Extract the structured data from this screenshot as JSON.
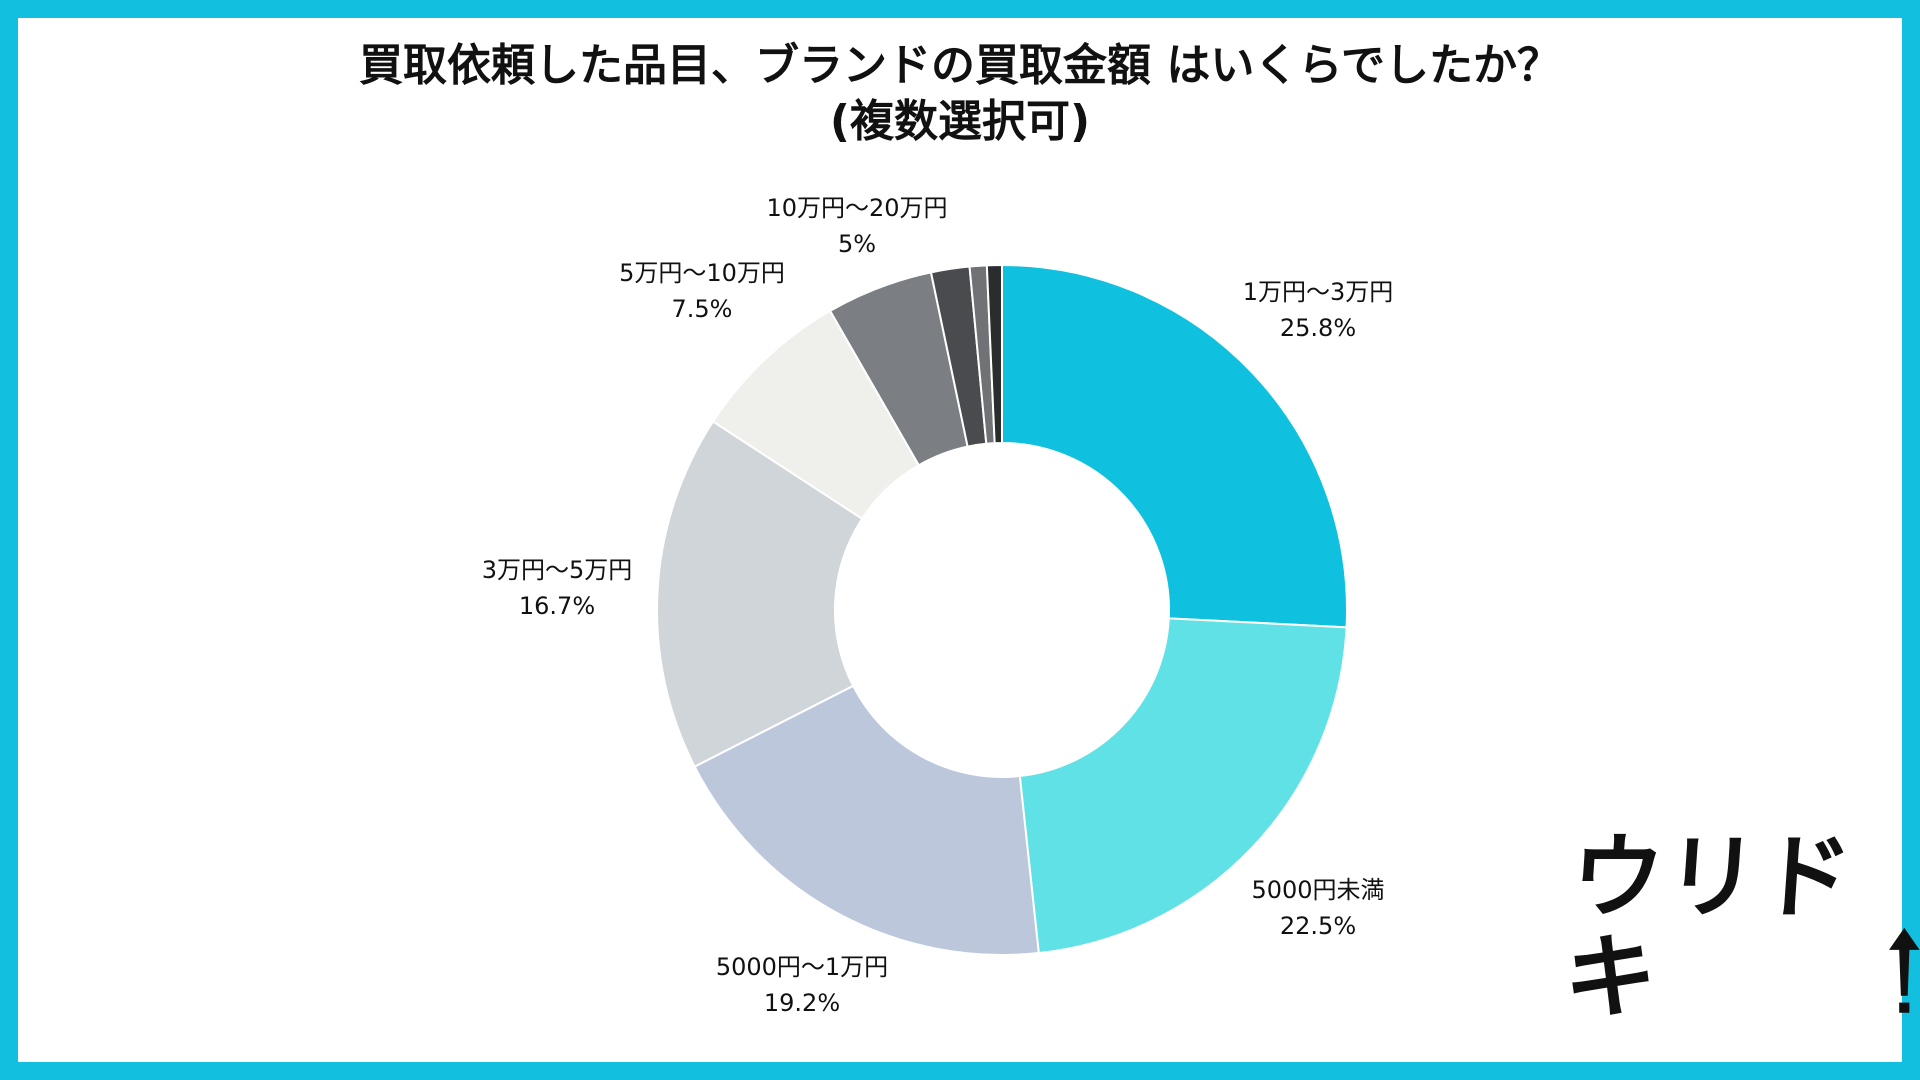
{
  "colors": {
    "frame": "#12bfdf",
    "slices": [
      "#10c1df",
      "#5fe1e6",
      "#bcc7dc",
      "#d0d5d9",
      "#efefec",
      "#7b7e83",
      "#4a4b4e",
      "#707276",
      "#2b2c2e"
    ]
  },
  "chart_data": {
    "type": "pie",
    "donut": true,
    "title": "買取依頼した品目、ブランドの買取金額 はいくらでしたか？",
    "subtitle": "(複数選択可)",
    "slices": [
      {
        "label": "1万円〜3万円",
        "value": 25.8,
        "value_label": "25.8%"
      },
      {
        "label": "5000円未満",
        "value": 22.5,
        "value_label": "22.5%"
      },
      {
        "label": "5000円〜1万円",
        "value": 19.2,
        "value_label": "19.2%"
      },
      {
        "label": "3万円〜5万円",
        "value": 16.7,
        "value_label": "16.7%"
      },
      {
        "label": "5万円〜10万円",
        "value": 7.5,
        "value_label": "7.5%"
      },
      {
        "label": "10万円〜20万円",
        "value": 5,
        "value_label": "5%"
      },
      {
        "label": "",
        "value": 1.8,
        "value_label": ""
      },
      {
        "label": "",
        "value": 0.8,
        "value_label": ""
      },
      {
        "label": "",
        "value": 0.7,
        "value_label": ""
      }
    ]
  },
  "logo": {
    "text": "ウリドキ"
  }
}
